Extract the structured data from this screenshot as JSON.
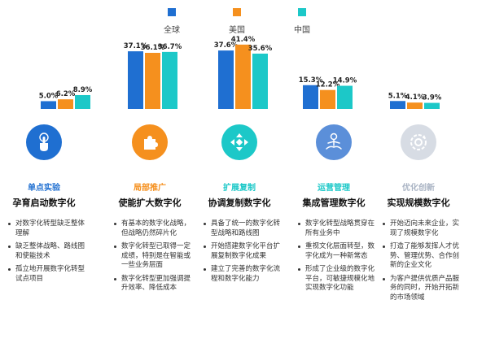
{
  "chart_data": {
    "type": "bar",
    "legend_position": "top-center",
    "series": [
      {
        "name": "全球",
        "color": "#1f6fd1",
        "values": [
          5.0,
          37.1,
          37.6,
          15.3,
          5.1
        ]
      },
      {
        "name": "美国",
        "color": "#f5901e",
        "values": [
          6.2,
          36.1,
          41.4,
          12.2,
          4.1
        ]
      },
      {
        "name": "中国",
        "color": "#1cc8c8",
        "values": [
          8.9,
          36.7,
          35.6,
          14.9,
          3.9
        ]
      }
    ],
    "value_labels": [
      [
        "5.0%",
        "37.1%",
        "37.6%",
        "15.3%",
        "5.1%"
      ],
      [
        "6.2%",
        "36.1%",
        "41.4%",
        "12.2%",
        "4.1%"
      ],
      [
        "8.9%",
        "36.7%",
        "35.6%",
        "14.9%",
        "3.9%"
      ]
    ],
    "ylim": [
      0,
      45
    ],
    "grid": false
  },
  "stages": [
    {
      "name": "单点实验",
      "title": "孕育启动数字化",
      "color": "#1f6fd1",
      "icon": "touch-hand-icon",
      "items": [
        "对数字化转型缺乏整体理解",
        "缺乏整体战略、路线图和使能技术",
        "孤立地开展数字化转型试点项目"
      ]
    },
    {
      "name": "局部推广",
      "title": "使能扩大数字化",
      "color": "#f5901e",
      "icon": "puzzle-piece-icon",
      "items": [
        "有基本的数字化战略，但战略仍然碎片化",
        "数字化转型已取得一定成绩，特别是在智能或一些业务层面",
        "数字化转型更加强调提升效率、降低成本"
      ]
    },
    {
      "name": "扩展复制",
      "title": "协调复制数字化",
      "color": "#1cc8c8",
      "icon": "expand-arrows-icon",
      "items": [
        "具备了统一的数字化转型战略和路线图",
        "开始搭建数字化平台扩展复制数字化成果",
        "建立了完善的数字化流程和数字化能力"
      ]
    },
    {
      "name": "运营管理",
      "title": "集成管理数字化",
      "color": "#5b8fd9",
      "icon": "meditation-person-icon",
      "items": [
        "数字化转型战略贯穿在所有业务中",
        "重视文化层面转型，数字化成为一种新常态",
        "形成了企业级的数字化平台，可敏捷规模化地实现数字化功能"
      ]
    },
    {
      "name": "优化创新",
      "title": "实现规模数字化",
      "color": "#aab4c4",
      "icon": "gear-cycle-icon",
      "items": [
        "开始迈向未来企业，实现了规模数字化",
        "打造了能够发挥人才优势、管理优势、合作创新的企业文化",
        "为客户提供优质产品服务的同时，开始开拓新的市场领域"
      ]
    }
  ]
}
